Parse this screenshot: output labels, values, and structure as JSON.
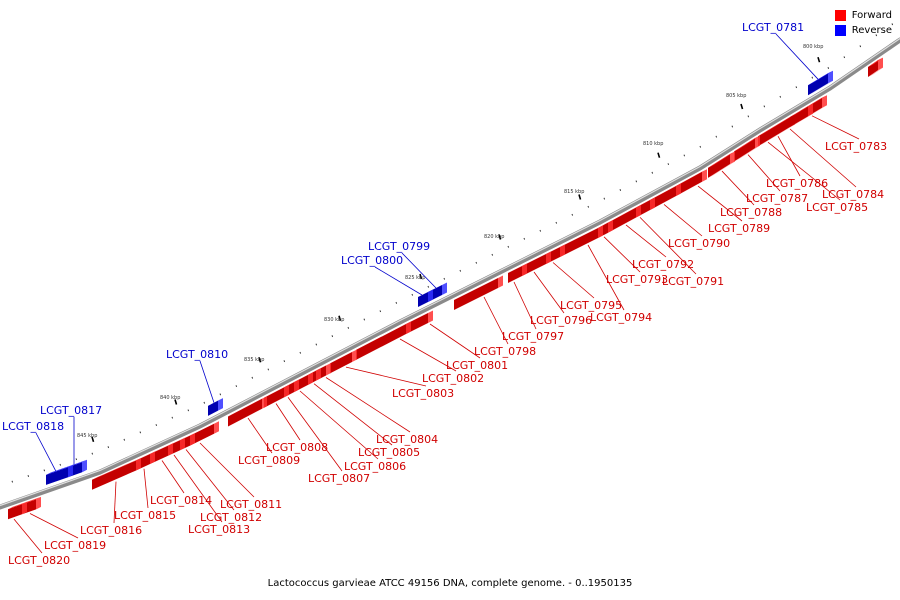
{
  "legend": {
    "forward": {
      "label": "Forward",
      "color": "#ff0000"
    },
    "reverse": {
      "label": "Reverse",
      "color": "#0000ff"
    }
  },
  "caption": "Lactococcus garvieae ATCC 49156 DNA, complete genome. - 0..1950135",
  "ticks": [
    {
      "label": "800 kbp"
    },
    {
      "label": "805 kbp"
    },
    {
      "label": "810 kbp"
    },
    {
      "label": "815 kbp"
    },
    {
      "label": "820 kbp"
    },
    {
      "label": "825 kbp"
    },
    {
      "label": "830 kbp"
    },
    {
      "label": "835 kbp"
    },
    {
      "label": "840 kbp"
    },
    {
      "label": "845 kbp"
    }
  ],
  "genes": [
    {
      "id": "LCGT_0781",
      "strand": "reverse"
    },
    {
      "id": "LCGT_0783",
      "strand": "forward"
    },
    {
      "id": "LCGT_0784",
      "strand": "forward"
    },
    {
      "id": "LCGT_0785",
      "strand": "forward"
    },
    {
      "id": "LCGT_0786",
      "strand": "forward"
    },
    {
      "id": "LCGT_0787",
      "strand": "forward"
    },
    {
      "id": "LCGT_0788",
      "strand": "forward"
    },
    {
      "id": "LCGT_0789",
      "strand": "forward"
    },
    {
      "id": "LCGT_0790",
      "strand": "forward"
    },
    {
      "id": "LCGT_0791",
      "strand": "forward"
    },
    {
      "id": "LCGT_0792",
      "strand": "forward"
    },
    {
      "id": "LCGT_0793",
      "strand": "forward"
    },
    {
      "id": "LCGT_0794",
      "strand": "forward"
    },
    {
      "id": "LCGT_0795",
      "strand": "forward"
    },
    {
      "id": "LCGT_0796",
      "strand": "forward"
    },
    {
      "id": "LCGT_0797",
      "strand": "forward"
    },
    {
      "id": "LCGT_0798",
      "strand": "forward"
    },
    {
      "id": "LCGT_0799",
      "strand": "reverse"
    },
    {
      "id": "LCGT_0800",
      "strand": "reverse"
    },
    {
      "id": "LCGT_0801",
      "strand": "forward"
    },
    {
      "id": "LCGT_0802",
      "strand": "forward"
    },
    {
      "id": "LCGT_0803",
      "strand": "forward"
    },
    {
      "id": "LCGT_0804",
      "strand": "forward"
    },
    {
      "id": "LCGT_0805",
      "strand": "forward"
    },
    {
      "id": "LCGT_0806",
      "strand": "forward"
    },
    {
      "id": "LCGT_0807",
      "strand": "forward"
    },
    {
      "id": "LCGT_0808",
      "strand": "forward"
    },
    {
      "id": "LCGT_0809",
      "strand": "forward"
    },
    {
      "id": "LCGT_0810",
      "strand": "reverse"
    },
    {
      "id": "LCGT_0811",
      "strand": "forward"
    },
    {
      "id": "LCGT_0812",
      "strand": "forward"
    },
    {
      "id": "LCGT_0813",
      "strand": "forward"
    },
    {
      "id": "LCGT_0814",
      "strand": "forward"
    },
    {
      "id": "LCGT_0815",
      "strand": "forward"
    },
    {
      "id": "LCGT_0816",
      "strand": "forward"
    },
    {
      "id": "LCGT_0817",
      "strand": "reverse"
    },
    {
      "id": "LCGT_0818",
      "strand": "reverse"
    },
    {
      "id": "LCGT_0819",
      "strand": "forward"
    },
    {
      "id": "LCGT_0820",
      "strand": "forward"
    }
  ]
}
